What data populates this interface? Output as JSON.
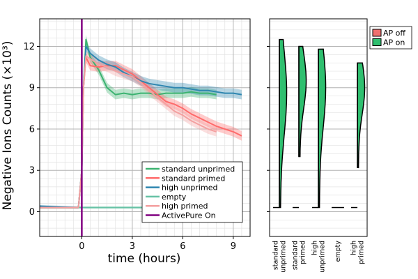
{
  "chart_data": [
    {
      "type": "line",
      "xlabel": "time (hours)",
      "ylabel": "Negative Ions Counts (×10³)",
      "xlim": [
        -2.5,
        10.0
      ],
      "ylim": [
        -1.8,
        14.0
      ],
      "xticks": [
        0,
        3,
        6,
        9
      ],
      "yticks": [
        0,
        3,
        6,
        9,
        12
      ],
      "xtick_labels": [
        "0",
        "3",
        "6",
        "9"
      ],
      "ytick_labels": [
        "0",
        "3",
        "6",
        "9",
        "12"
      ],
      "grid": true,
      "minor_grid": true,
      "legend_position": "bottom-right",
      "legend": [
        "standard unprimed",
        "standard primed",
        "high unprimed",
        "empty",
        "high primed",
        "ActivePure On"
      ],
      "vline": {
        "x": 0,
        "label": "ActivePure On",
        "color": "#800080"
      },
      "series": [
        {
          "name": "standard unprimed",
          "color": "#3cb371",
          "x": [
            -2.5,
            -0.2,
            0.0,
            0.1,
            0.25,
            0.5,
            1.0,
            1.5,
            2.0,
            2.5,
            3.0,
            3.5,
            4.0,
            4.5,
            5.0,
            5.5,
            6.0,
            6.5,
            7.0,
            7.5,
            8.0
          ],
          "y": [
            0.3,
            0.3,
            3.0,
            9.0,
            12.5,
            11.2,
            10.3,
            9.0,
            8.5,
            8.6,
            8.5,
            8.6,
            8.6,
            8.5,
            8.6,
            8.6,
            8.6,
            8.7,
            8.6,
            8.6,
            8.5
          ]
        },
        {
          "name": "standard primed",
          "color": "#ff6b6b",
          "x": [
            -2.5,
            -0.2,
            0.0,
            0.1,
            0.25,
            0.5,
            1.0,
            1.5,
            2.0,
            2.5,
            3.0,
            3.5,
            4.0,
            4.5,
            5.0,
            5.5,
            6.0,
            6.5,
            7.0,
            7.5,
            8.0,
            8.5,
            9.0,
            9.5
          ],
          "y": [
            0.3,
            0.3,
            3.0,
            9.0,
            11.2,
            10.6,
            10.5,
            10.6,
            10.6,
            10.3,
            10.0,
            9.5,
            9.0,
            8.5,
            8.0,
            7.8,
            7.5,
            7.1,
            6.8,
            6.5,
            6.2,
            6.0,
            5.8,
            5.5
          ]
        },
        {
          "name": "high unprimed",
          "color": "#2e86b0",
          "x": [
            -2.5,
            -0.2,
            0.0,
            0.1,
            0.25,
            0.5,
            1.0,
            1.5,
            2.0,
            2.5,
            3.0,
            3.5,
            4.0,
            4.5,
            5.0,
            5.5,
            6.0,
            6.5,
            7.0,
            7.5,
            8.0,
            8.5,
            9.0,
            9.5
          ],
          "y": [
            0.4,
            0.3,
            3.0,
            9.0,
            12.0,
            11.5,
            11.0,
            10.7,
            10.5,
            10.1,
            9.8,
            9.5,
            9.3,
            9.2,
            9.1,
            9.0,
            9.0,
            8.9,
            8.8,
            8.8,
            8.7,
            8.6,
            8.6,
            8.5
          ]
        },
        {
          "name": "empty",
          "color": "#66c2a5",
          "x": [
            -2.5,
            9.5
          ],
          "y": [
            0.3,
            0.3
          ]
        },
        {
          "name": "high primed",
          "color": "#f4a0a0",
          "x": [
            -2.5,
            -0.2,
            0.0,
            0.1,
            0.25,
            0.5,
            1.0,
            1.5,
            2.0,
            2.5,
            3.0,
            3.5,
            4.0,
            4.5,
            5.0,
            5.5,
            6.0,
            6.5,
            7.0,
            7.5,
            8.0
          ],
          "y": [
            0.3,
            0.3,
            3.0,
            9.0,
            11.3,
            11.1,
            10.7,
            10.5,
            10.2,
            10.0,
            9.8,
            9.4,
            8.8,
            8.3,
            7.8,
            7.3,
            7.0,
            6.6,
            6.3,
            6.0,
            5.8
          ]
        }
      ]
    },
    {
      "type": "violin",
      "ylim": [
        -1.8,
        14.0
      ],
      "yticks": [
        0,
        3,
        6,
        9,
        12
      ],
      "grid": true,
      "legend_position": "top-right",
      "legend": [
        {
          "label": "AP off",
          "color": "#f06f6f"
        },
        {
          "label": "AP on",
          "color": "#2fbf6f"
        }
      ],
      "categories": [
        "standard\nunprimed",
        "standard\nprimed",
        "high\nunprimed",
        "empty",
        "high\nprimed"
      ],
      "violins": [
        {
          "category": "standard unprimed",
          "off": {
            "min": 0.3,
            "max": 0.3,
            "peak": 0.3
          },
          "on": {
            "min": 0.3,
            "max": 12.5,
            "peak": 8.6
          }
        },
        {
          "category": "standard primed",
          "off": {
            "min": 0.3,
            "max": 0.3,
            "peak": 0.3
          },
          "on": {
            "min": 4.0,
            "max": 12.0,
            "peak": 9.5
          }
        },
        {
          "category": "high unprimed",
          "off": {
            "min": 0.3,
            "max": 0.3,
            "peak": 0.3
          },
          "on": {
            "min": 0.3,
            "max": 11.8,
            "peak": 9.0
          }
        },
        {
          "category": "empty",
          "off": {
            "min": 0.3,
            "max": 0.3,
            "peak": 0.3
          },
          "on": {
            "min": 0.3,
            "max": 0.3,
            "peak": 0.3
          }
        },
        {
          "category": "high primed",
          "off": {
            "min": 0.3,
            "max": 0.3,
            "peak": 0.3
          },
          "on": {
            "min": 3.2,
            "max": 10.8,
            "peak": 9.0
          }
        }
      ]
    }
  ]
}
